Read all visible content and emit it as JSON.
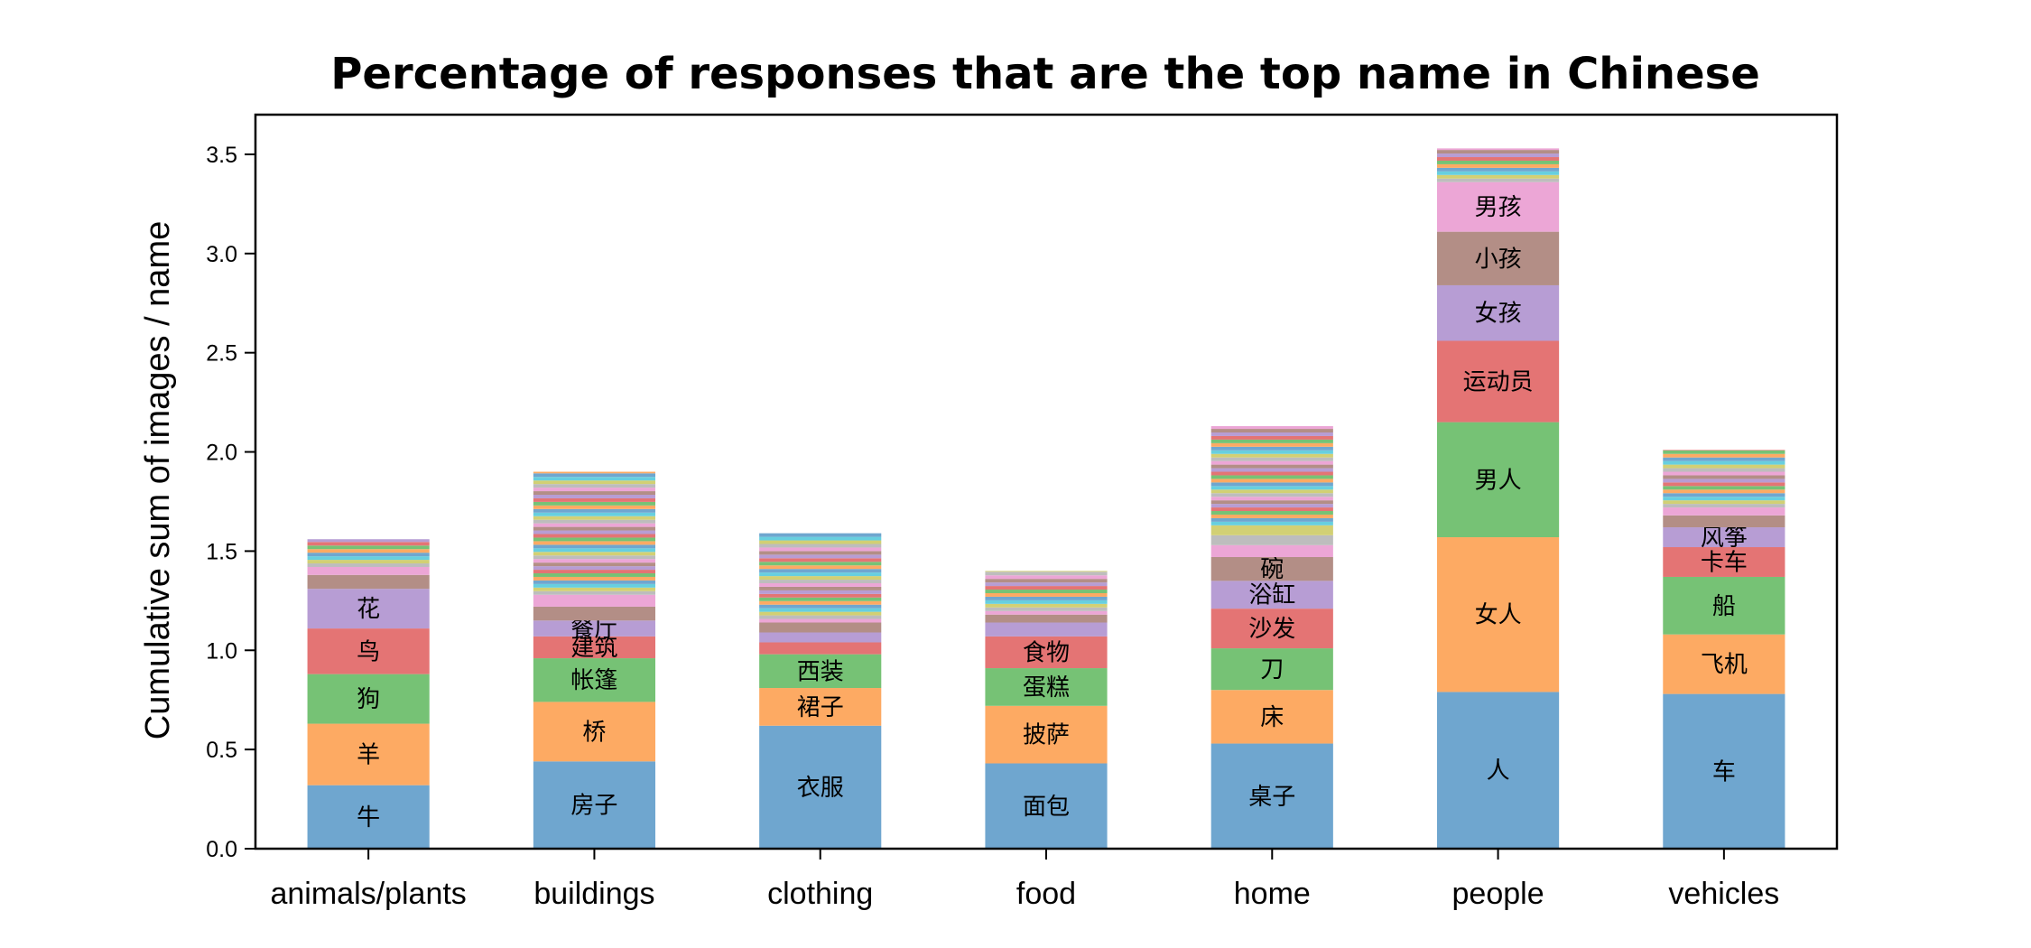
{
  "chart_data": {
    "type": "bar",
    "stacked": true,
    "title": "Percentage of responses that are the top name in Chinese",
    "xlabel": "",
    "ylabel": "Cumulative sum of images / name",
    "ylim": [
      0,
      3.7
    ],
    "yticks": [
      "0.0",
      "0.5",
      "1.0",
      "1.5",
      "2.0",
      "2.5",
      "3.0",
      "3.5"
    ],
    "grid": false,
    "legend": "none",
    "categories": [
      "animals/plants",
      "buildings",
      "clothing",
      "food",
      "home",
      "people",
      "vehicles"
    ],
    "palette": [
      "#6fa6cf",
      "#fdaa63",
      "#76c275",
      "#e47474",
      "#b79dd4",
      "#b38e86",
      "#eca6d6",
      "#bdbdbd",
      "#d2d074",
      "#67cfdf"
    ],
    "bars": [
      {
        "category": "animals/plants",
        "total": 1.56,
        "segments": [
          {
            "name": "牛",
            "value": 0.32
          },
          {
            "name": "羊",
            "value": 0.31
          },
          {
            "name": "狗",
            "value": 0.25
          },
          {
            "name": "鸟",
            "value": 0.23
          },
          {
            "name": "花",
            "value": 0.2
          },
          {
            "name": "",
            "value": 0.07
          },
          {
            "name": "",
            "value": 0.04
          }
        ]
      },
      {
        "category": "buildings",
        "total": 1.9,
        "segments": [
          {
            "name": "房子",
            "value": 0.44
          },
          {
            "name": "桥",
            "value": 0.3
          },
          {
            "name": "帐篷",
            "value": 0.22
          },
          {
            "name": "建筑",
            "value": 0.11
          },
          {
            "name": "餐厅",
            "value": 0.08
          },
          {
            "name": "",
            "value": 0.07
          },
          {
            "name": "",
            "value": 0.06
          }
        ]
      },
      {
        "category": "clothing",
        "total": 1.59,
        "segments": [
          {
            "name": "衣服",
            "value": 0.62
          },
          {
            "name": "裙子",
            "value": 0.19
          },
          {
            "name": "西装",
            "value": 0.17
          },
          {
            "name": "",
            "value": 0.06
          },
          {
            "name": "",
            "value": 0.05
          },
          {
            "name": "",
            "value": 0.05
          }
        ]
      },
      {
        "category": "food",
        "total": 1.4,
        "segments": [
          {
            "name": "面包",
            "value": 0.43
          },
          {
            "name": "披萨",
            "value": 0.29
          },
          {
            "name": "蛋糕",
            "value": 0.19
          },
          {
            "name": "食物",
            "value": 0.16
          },
          {
            "name": "",
            "value": 0.07
          },
          {
            "name": "",
            "value": 0.04
          }
        ]
      },
      {
        "category": "home",
        "total": 2.13,
        "segments": [
          {
            "name": "桌子",
            "value": 0.53
          },
          {
            "name": "床",
            "value": 0.27
          },
          {
            "name": "刀",
            "value": 0.21
          },
          {
            "name": "沙发",
            "value": 0.2
          },
          {
            "name": "浴缸",
            "value": 0.14
          },
          {
            "name": "碗",
            "value": 0.12
          },
          {
            "name": "",
            "value": 0.06
          },
          {
            "name": "",
            "value": 0.05
          },
          {
            "name": "",
            "value": 0.05
          }
        ]
      },
      {
        "category": "people",
        "total": 3.53,
        "segments": [
          {
            "name": "人",
            "value": 0.79
          },
          {
            "name": "女人",
            "value": 0.78
          },
          {
            "name": "男人",
            "value": 0.58
          },
          {
            "name": "运动员",
            "value": 0.41
          },
          {
            "name": "女孩",
            "value": 0.28
          },
          {
            "name": "小孩",
            "value": 0.27
          },
          {
            "name": "男孩",
            "value": 0.25
          }
        ]
      },
      {
        "category": "vehicles",
        "total": 2.01,
        "segments": [
          {
            "name": "车",
            "value": 0.78
          },
          {
            "name": "飞机",
            "value": 0.3
          },
          {
            "name": "船",
            "value": 0.29
          },
          {
            "name": "卡车",
            "value": 0.15
          },
          {
            "name": "风筝",
            "value": 0.1
          },
          {
            "name": "",
            "value": 0.06
          },
          {
            "name": "",
            "value": 0.04
          }
        ]
      }
    ]
  }
}
